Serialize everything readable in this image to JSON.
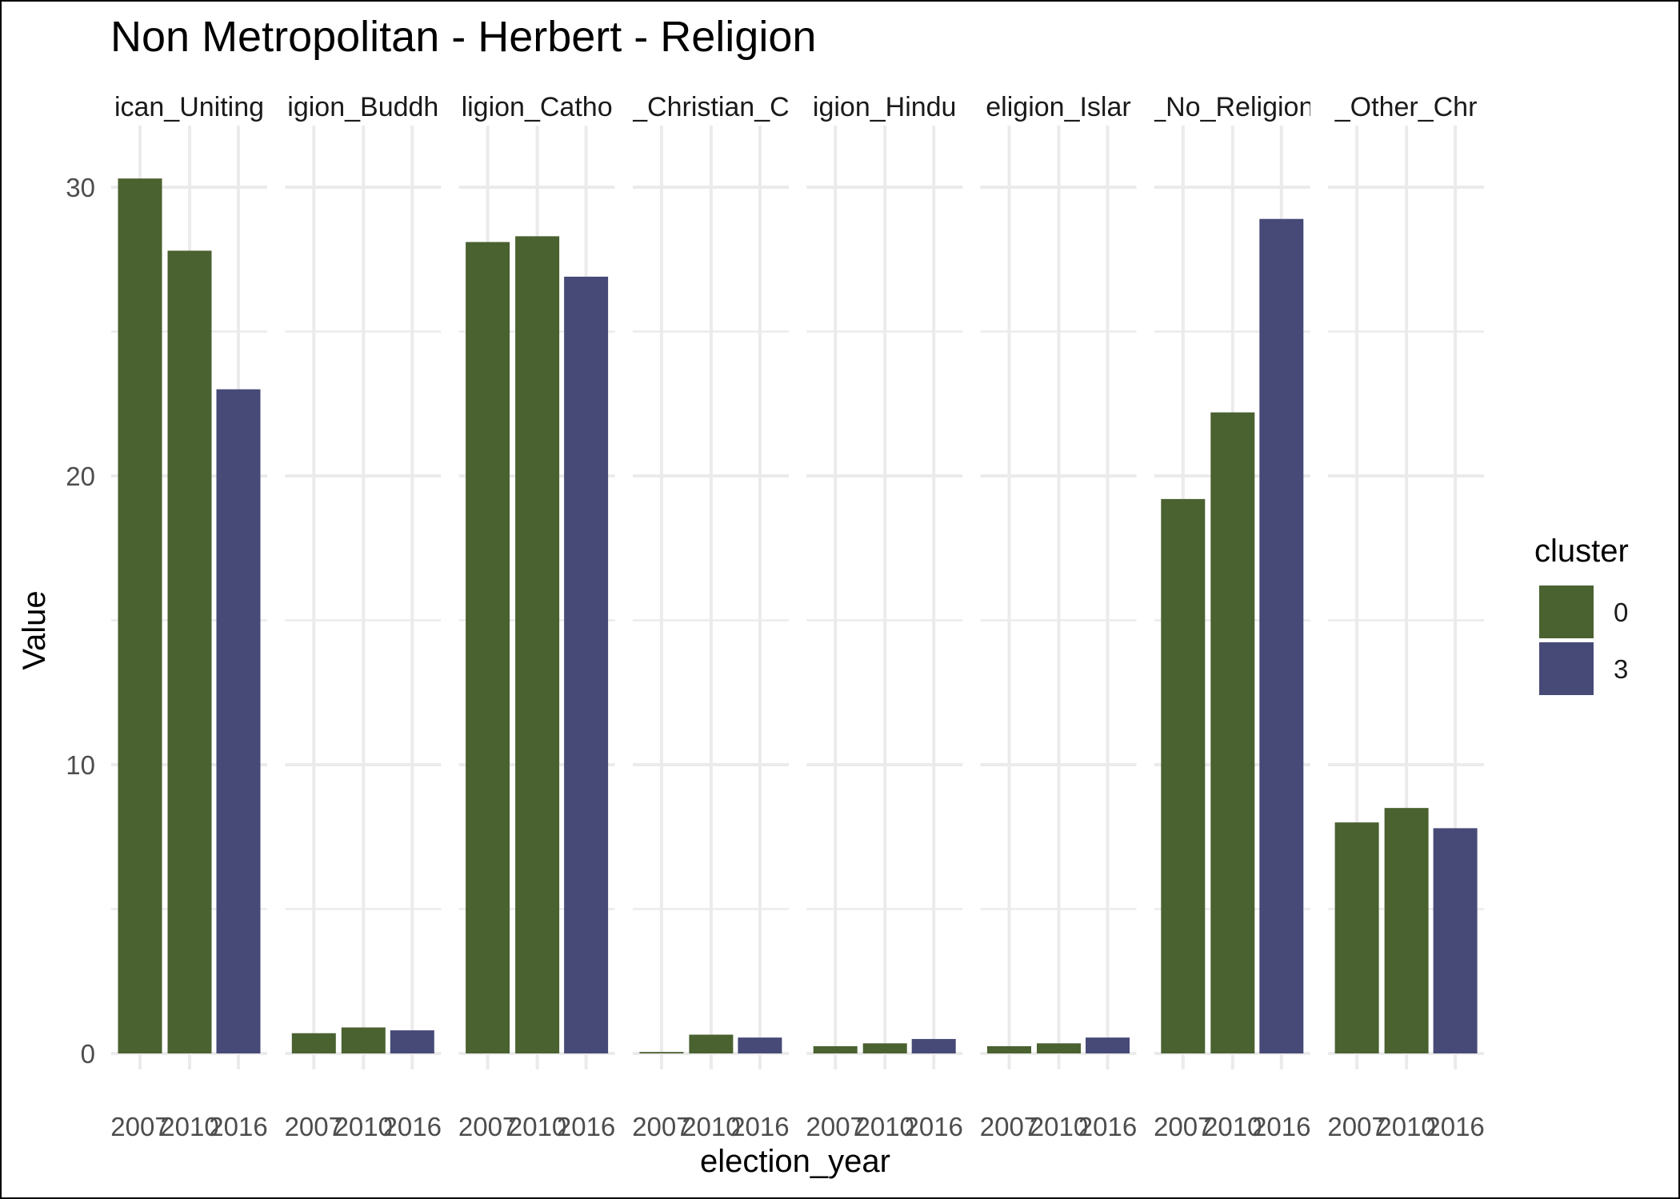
{
  "chart_data": {
    "type": "bar",
    "title": "Non Metropolitan - Herbert - Religion",
    "xlabel": "election_year",
    "ylabel": "Value",
    "ylim": [
      0,
      31.5
    ],
    "yticks": [
      0,
      10,
      20,
      30
    ],
    "grid": true,
    "legend": {
      "title": "cluster",
      "placement": "right",
      "entries": [
        {
          "label": "0",
          "color": "#4a6130"
        },
        {
          "label": "3",
          "color": "#474a77"
        }
      ]
    },
    "x": [
      "2007",
      "2010",
      "2016"
    ],
    "panels": [
      {
        "label": "Religion_Anglican_Uniting",
        "strip_text": "ican_Uniting",
        "values": [
          30.3,
          27.8,
          23.0
        ],
        "clusters": [
          "0",
          "0",
          "3"
        ]
      },
      {
        "label": "Religion_Buddhism",
        "strip_text": "igion_Buddh",
        "values": [
          0.7,
          0.9,
          0.8
        ],
        "clusters": [
          "0",
          "0",
          "3"
        ]
      },
      {
        "label": "Religion_Catholic",
        "strip_text": "ligion_Catho",
        "values": [
          28.1,
          28.3,
          26.9
        ],
        "clusters": [
          "0",
          "0",
          "3"
        ]
      },
      {
        "label": "Religion_Christian_Other",
        "strip_text": "_Christian_C",
        "values": [
          0.05,
          0.65,
          0.55
        ],
        "clusters": [
          "0",
          "0",
          "3"
        ]
      },
      {
        "label": "Religion_Hinduism",
        "strip_text": "igion_Hindu",
        "values": [
          0.25,
          0.35,
          0.5
        ],
        "clusters": [
          "0",
          "0",
          "3"
        ]
      },
      {
        "label": "Religion_Islam",
        "strip_text": "eligion_Islar",
        "values": [
          0.25,
          0.35,
          0.55
        ],
        "clusters": [
          "0",
          "0",
          "3"
        ]
      },
      {
        "label": "Religion_No_Religion",
        "strip_text": "_No_Religion",
        "values": [
          19.2,
          22.2,
          28.9
        ],
        "clusters": [
          "0",
          "0",
          "3"
        ]
      },
      {
        "label": "Religion_Other_Christian",
        "strip_text": "_Other_Chr",
        "values": [
          8.0,
          8.5,
          7.8
        ],
        "clusters": [
          "0",
          "0",
          "3"
        ]
      }
    ]
  }
}
